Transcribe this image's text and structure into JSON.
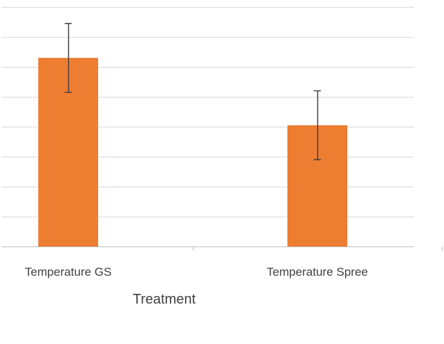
{
  "chart_data": {
    "type": "bar",
    "categories": [
      "Temperature GS",
      "Temperature Spree"
    ],
    "series": [
      {
        "values": [
          6.3,
          4.05
        ],
        "error_low": [
          1.15,
          1.15
        ],
        "error_high": [
          1.15,
          1.15
        ],
        "color": "#ED7D31"
      }
    ],
    "xlabel": "Treatment",
    "ylim": [
      0,
      8
    ],
    "y_gridlines": [
      0,
      1,
      2,
      3,
      4,
      5,
      6,
      7,
      8
    ],
    "grid": true,
    "legend": "none",
    "colors": {
      "bar": "#ED7D31",
      "grid": "#D9D9D9",
      "axis": "#BFBFBF",
      "error_bar": "#404040",
      "text": "#404040"
    }
  }
}
